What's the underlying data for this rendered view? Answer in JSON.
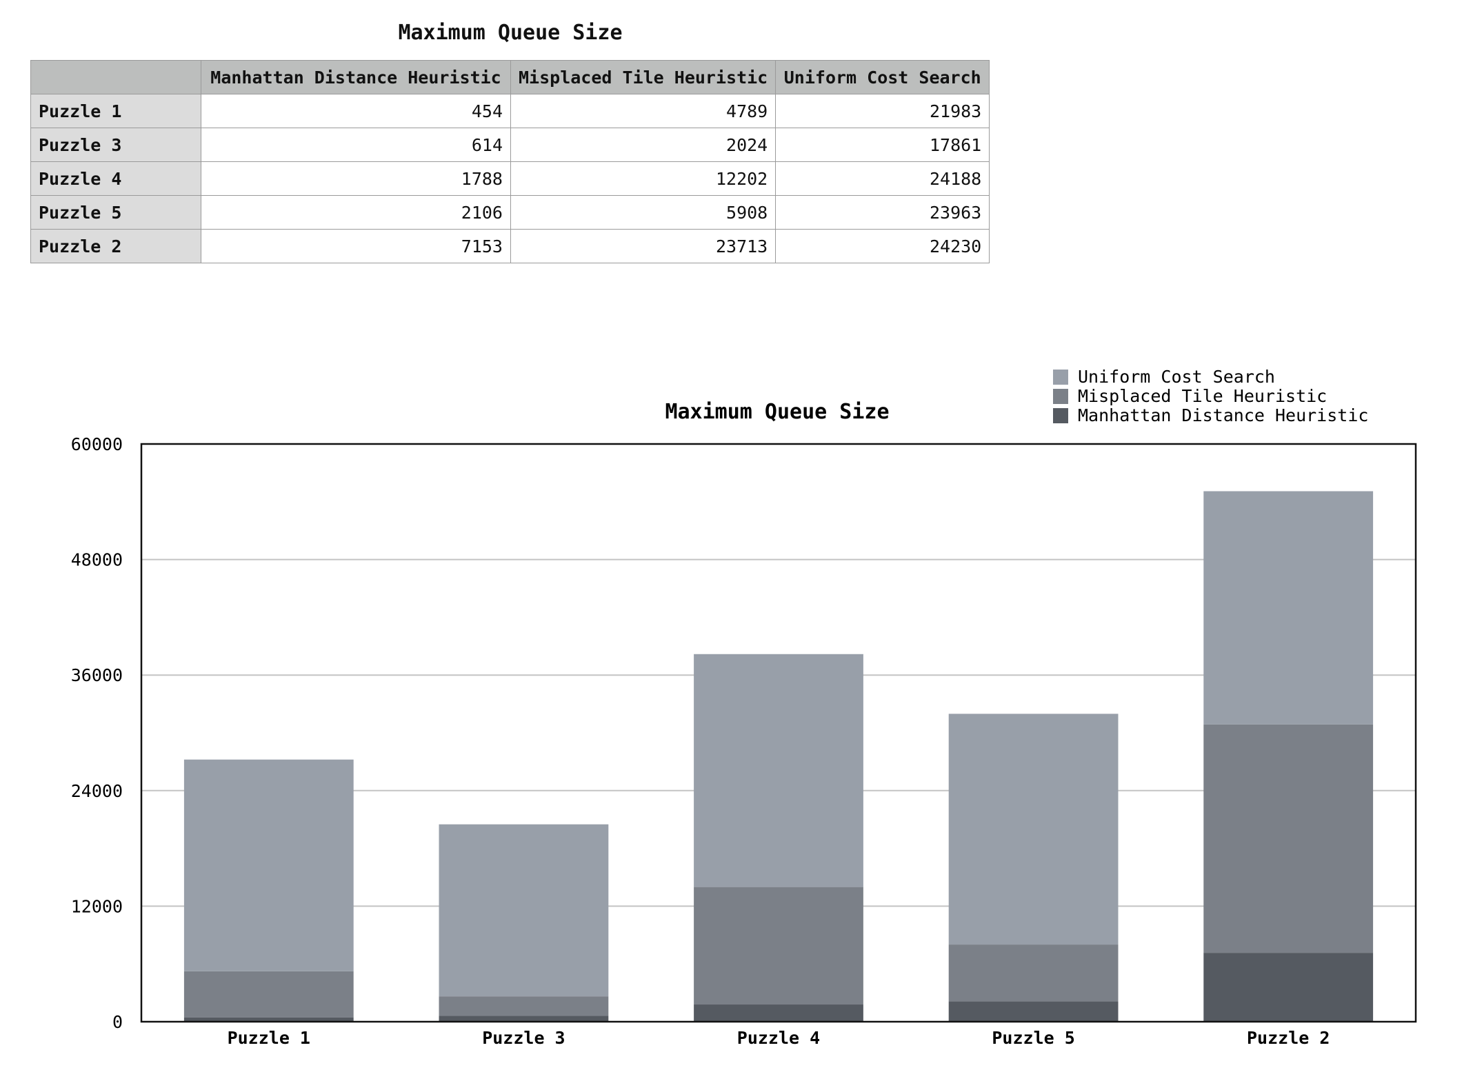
{
  "table": {
    "title": "Maximum Queue Size",
    "corner": "",
    "headers": [
      "Manhattan Distance Heuristic",
      "Misplaced Tile Heuristic",
      "Uniform Cost Search"
    ],
    "rows": [
      {
        "label": "Puzzle 1",
        "values": [
          "454",
          "4789",
          "21983"
        ]
      },
      {
        "label": "Puzzle 3",
        "values": [
          "614",
          "2024",
          "17861"
        ]
      },
      {
        "label": "Puzzle 4",
        "values": [
          "1788",
          "12202",
          "24188"
        ]
      },
      {
        "label": "Puzzle 5",
        "values": [
          "2106",
          "5908",
          "23963"
        ]
      },
      {
        "label": "Puzzle 2",
        "values": [
          "7153",
          "23713",
          "24230"
        ]
      }
    ]
  },
  "chart_data": {
    "type": "bar",
    "stacked": true,
    "title": "Maximum Queue Size",
    "xlabel": "",
    "ylabel": "",
    "categories": [
      "Puzzle 1",
      "Puzzle 3",
      "Puzzle 4",
      "Puzzle 5",
      "Puzzle 2"
    ],
    "series": [
      {
        "name": "Manhattan Distance Heuristic",
        "values": [
          454,
          614,
          1788,
          2106,
          7153
        ],
        "color": "#555a61"
      },
      {
        "name": "Misplaced Tile Heuristic",
        "values": [
          4789,
          2024,
          12202,
          5908,
          23713
        ],
        "color": "#7b8088"
      },
      {
        "name": "Uniform Cost Search",
        "values": [
          21983,
          17861,
          24188,
          23963,
          24230
        ],
        "color": "#989fa9"
      }
    ],
    "ylim": [
      0,
      60000
    ],
    "yticks": [
      0,
      12000,
      24000,
      36000,
      48000,
      60000
    ],
    "grid": true,
    "legend_position": "top-right",
    "legend_order": [
      "Uniform Cost Search",
      "Misplaced Tile Heuristic",
      "Manhattan Distance Heuristic"
    ]
  }
}
